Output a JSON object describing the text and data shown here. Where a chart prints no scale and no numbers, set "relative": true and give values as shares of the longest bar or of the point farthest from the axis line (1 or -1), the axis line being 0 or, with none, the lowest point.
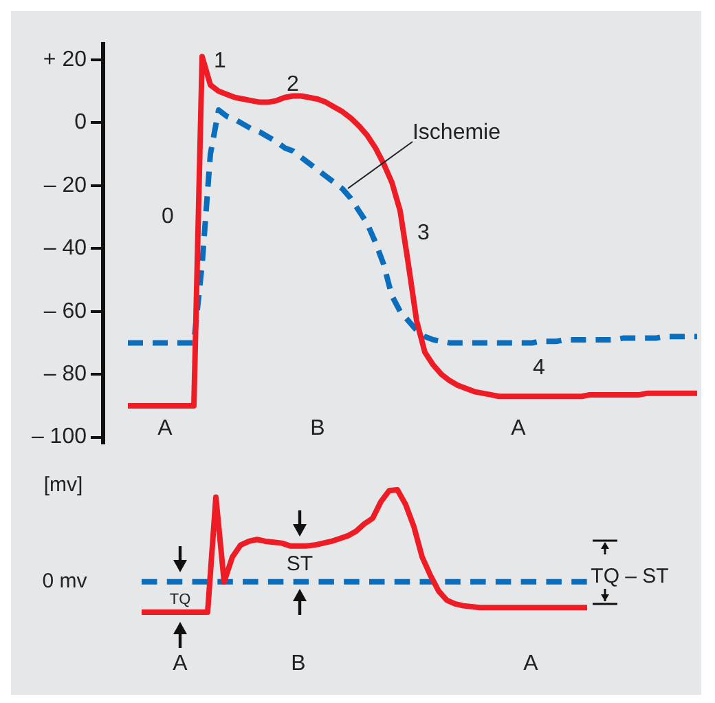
{
  "chart_data": [
    {
      "type": "line",
      "categories": [
        null,
        null,
        null,
        null,
        null,
        null,
        null,
        null,
        null,
        null,
        null,
        null,
        null,
        null,
        null,
        null,
        null,
        null,
        null,
        null,
        null,
        null,
        null,
        null,
        null,
        null,
        null,
        null,
        null,
        null,
        null,
        null,
        null,
        null,
        null,
        null,
        null,
        null,
        null,
        null,
        null,
        null,
        null,
        null,
        null,
        null,
        null,
        null,
        null,
        null,
        null,
        null,
        null,
        null,
        null,
        null,
        null,
        null,
        null,
        null,
        null,
        null,
        null,
        null,
        null,
        null,
        null,
        null,
        null,
        null,
        null,
        null,
        null
      ],
      "series": [
        {
          "color": "#ee1c25",
          "line_style": "solid",
          "values": [
            null,
            null,
            null,
            -90,
            -90,
            -90,
            -90,
            -90,
            -90,
            -90,
            -90,
            -90,
            21,
            12,
            10,
            9,
            8,
            7.5,
            7,
            6.5,
            6.5,
            7,
            8,
            8.5,
            8.5,
            8,
            7.5,
            6.5,
            5,
            3.5,
            1.5,
            -1,
            -4,
            -8,
            -13,
            -19,
            -28,
            -45,
            -63,
            -73,
            -77,
            -80,
            -82,
            -83.5,
            -84.5,
            -85.5,
            -86,
            -86.5,
            -87,
            -87,
            -87,
            -87,
            -87,
            -87,
            -87,
            -87,
            -87,
            -87,
            -87,
            -86.5,
            -86.5,
            -86.5,
            -86.5,
            -86.5,
            -86.5,
            -86.5,
            -86,
            -86,
            -86,
            -86,
            -86,
            -86,
            -86
          ]
        },
        {
          "color": "#0a6ebd",
          "line_style": "dashed",
          "values": [
            null,
            null,
            null,
            -70,
            -70,
            -70,
            -70,
            -70,
            -70,
            -70,
            -70,
            -70,
            -45,
            -10,
            4,
            2,
            1,
            -0.5,
            -2,
            -3,
            -4.5,
            -6,
            -8,
            -9,
            -11,
            -13,
            -15,
            -17,
            -19,
            -21,
            -24,
            -28,
            -32,
            -38,
            -45,
            -55,
            -60,
            -63,
            -66,
            -68,
            -69,
            -69.5,
            -70,
            -70,
            -70,
            -70,
            -70,
            -70,
            -70,
            -70,
            -70,
            -70,
            -70,
            -69.5,
            -69.5,
            -69.5,
            -69,
            -69,
            -69,
            -69,
            -69,
            -69,
            -69,
            -68.5,
            -68.5,
            -68.5,
            -68.5,
            -68.5,
            -68,
            -68,
            -68,
            -68,
            -68
          ]
        }
      ],
      "ylim": [
        -102,
        25
      ],
      "yticks": [
        {
          "value": 20,
          "label": "+ 20"
        },
        0,
        {
          "value": -20,
          "label": "– 20"
        },
        {
          "value": -40,
          "label": "– 40"
        },
        {
          "value": -60,
          "label": "– 60"
        },
        {
          "value": -80,
          "label": "– 80"
        },
        {
          "value": -100,
          "label": "– 100"
        }
      ],
      "tick_labels": "y",
      "grid": false,
      "legend": false,
      "marker": "none",
      "annotations": [
        "0",
        "1",
        "2",
        "3",
        "4",
        "Ischemie",
        "A",
        "B",
        "A"
      ]
    },
    {
      "type": "line",
      "relative": true,
      "categories": [
        null,
        null,
        null,
        null,
        null,
        null,
        null,
        null,
        null,
        null,
        null,
        null,
        null,
        null,
        null,
        null,
        null,
        null,
        null,
        null,
        null,
        null,
        null,
        null,
        null,
        null,
        null,
        null,
        null,
        null,
        null,
        null,
        null,
        null,
        null,
        null,
        null,
        null,
        null,
        null,
        null,
        null,
        null,
        null,
        null,
        null,
        null,
        null,
        null,
        null,
        null,
        null,
        null,
        null,
        null
      ],
      "series": [
        {
          "color": "#ee1c25",
          "line_style": "solid",
          "values": [
            -0.33,
            -0.33,
            -0.33,
            -0.33,
            -0.33,
            -0.33,
            -0.33,
            -0.33,
            -0.33,
            0.92,
            0,
            0.27,
            0.4,
            0.44,
            0.46,
            0.44,
            0.43,
            0.42,
            0.39,
            0.39,
            0.39,
            0.4,
            0.42,
            0.44,
            0.47,
            0.5,
            0.55,
            0.63,
            0.69,
            0.87,
            0.99,
            1,
            0.84,
            0.6,
            0.27,
            0.07,
            -0.1,
            -0.2,
            -0.24,
            -0.26,
            -0.27,
            -0.28,
            -0.28,
            -0.28,
            -0.28,
            -0.28,
            -0.28,
            -0.28,
            -0.28,
            -0.28,
            -0.28,
            -0.28,
            -0.28,
            -0.28,
            -0.28
          ]
        }
      ],
      "ylabel": "[mv]",
      "ref_lines": [
        {
          "axis": "y",
          "value": 0,
          "label": "0 mv",
          "color": "#0a6ebd",
          "line_style": "dashed"
        }
      ],
      "tick_labels": false,
      "grid": false,
      "legend": false,
      "marker": "none",
      "annotations": [
        "TQ",
        "ST",
        "TQ – ST",
        "A",
        "B",
        "A"
      ]
    }
  ]
}
